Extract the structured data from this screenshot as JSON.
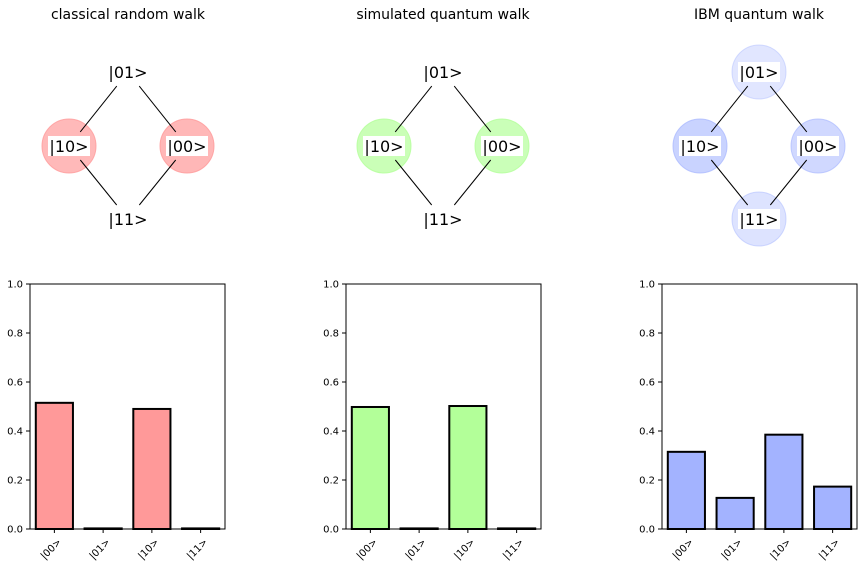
{
  "chart_data": [
    {
      "type": "bar",
      "title": "classical random walk",
      "categories": [
        "|00>",
        "|01>",
        "|10>",
        "|11>"
      ],
      "values": [
        0.515,
        0.0,
        0.49,
        0.0
      ],
      "ylim": [
        0,
        1
      ],
      "yticks": [
        "0.0",
        "0.2",
        "0.4",
        "0.6",
        "0.8",
        "1.0"
      ],
      "bar_color": "#ff9999",
      "graph": {
        "nodes": [
          {
            "label": "|01>",
            "probability": 0.0
          },
          {
            "label": "|10>",
            "probability": 0.49
          },
          {
            "label": "|00>",
            "probability": 0.515
          },
          {
            "label": "|11>",
            "probability": 0.0
          }
        ],
        "node_color": "#ff9999"
      }
    },
    {
      "type": "bar",
      "title": "simulated quantum walk",
      "categories": [
        "|00>",
        "|01>",
        "|10>",
        "|11>"
      ],
      "values": [
        0.498,
        0.0,
        0.502,
        0.0
      ],
      "ylim": [
        0,
        1
      ],
      "yticks": [
        "0.0",
        "0.2",
        "0.4",
        "0.6",
        "0.8",
        "1.0"
      ],
      "bar_color": "#b3ff99",
      "graph": {
        "nodes": [
          {
            "label": "|01>",
            "probability": 0.0
          },
          {
            "label": "|10>",
            "probability": 0.502
          },
          {
            "label": "|00>",
            "probability": 0.498
          },
          {
            "label": "|11>",
            "probability": 0.0
          }
        ],
        "node_color": "#b3ff99"
      }
    },
    {
      "type": "bar",
      "title": "IBM quantum walk",
      "categories": [
        "|00>",
        "|01>",
        "|10>",
        "|11>"
      ],
      "values": [
        0.315,
        0.127,
        0.385,
        0.173
      ],
      "ylim": [
        0,
        1
      ],
      "yticks": [
        "0.0",
        "0.2",
        "0.4",
        "0.6",
        "0.8",
        "1.0"
      ],
      "bar_color": "#a3b3ff",
      "graph": {
        "nodes": [
          {
            "label": "|01>",
            "probability": 0.127
          },
          {
            "label": "|10>",
            "probability": 0.385
          },
          {
            "label": "|00>",
            "probability": 0.315
          },
          {
            "label": "|11>",
            "probability": 0.173
          }
        ],
        "node_color": "#a3b3ff"
      }
    }
  ]
}
